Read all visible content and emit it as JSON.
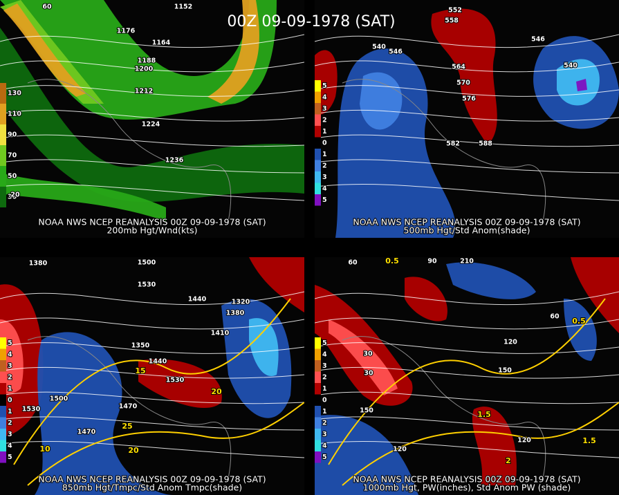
{
  "title": "00Z 09-09-1978 (SAT)",
  "panels": [
    {
      "caption": [
        "NOAA NWS NCEP REANALYSIS 00Z 09-09-1978 (SAT)",
        "200mb Hgt/Wnd(kts)"
      ],
      "legend": [
        "130",
        "110",
        "90",
        "70",
        "50",
        "30"
      ],
      "labels": [
        "1152",
        "1176",
        "1164",
        "1188",
        "1200",
        "1212",
        "1224",
        "1236",
        "60",
        "20"
      ]
    },
    {
      "caption": [
        "NOAA NWS NCEP REANALYSIS 00Z 09-09-1978 (SAT)",
        "500mb Hgt/Std Anom(shade)"
      ],
      "legend": [
        "5",
        "4",
        "3",
        "2",
        "1",
        "0",
        "1",
        "2",
        "3",
        "4",
        "5"
      ],
      "labels": [
        "552",
        "558",
        "546",
        "540",
        "564",
        "570",
        "576",
        "582",
        "588",
        "546",
        "540"
      ]
    },
    {
      "caption": [
        "NOAA NWS NCEP REANALYSIS 00Z 09-09-1978 (SAT)",
        "850mb Hgt/Tmpc/Std Anom Tmpc(shade)"
      ],
      "legend": [
        "5",
        "4",
        "3",
        "2",
        "1",
        "0",
        "1",
        "2",
        "3",
        "4",
        "5"
      ],
      "labels": [
        "1380",
        "1500",
        "1530",
        "1440",
        "1410",
        "1320",
        "1380",
        "1350",
        "1440",
        "1530",
        "1500",
        "1470",
        "1530",
        "1470",
        "15",
        "20",
        "25",
        "20",
        "10"
      ]
    },
    {
      "caption": [
        "NOAA NWS NCEP REANALYSIS 00Z 09-09-1978 (SAT)",
        "1000mb Hgt, PW(inches), Std Anom PW (shade)"
      ],
      "legend": [
        "5",
        "4",
        "3",
        "2",
        "1",
        "0",
        "1",
        "2",
        "3",
        "4",
        "5"
      ],
      "labels": [
        "60",
        "0.5",
        "90",
        "210",
        "150",
        "120",
        "60",
        "30",
        "30",
        "150",
        "120",
        "120",
        "1.5",
        "0.5",
        "2",
        "1.5"
      ]
    }
  ]
}
